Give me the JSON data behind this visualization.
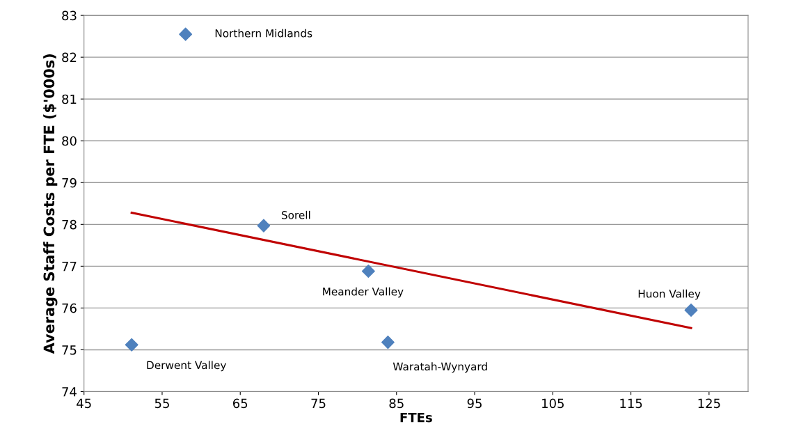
{
  "chart_data": {
    "type": "scatter",
    "xlabel": "FTEs",
    "ylabel": "Average Staff Costs per FTE ($'000s)",
    "xlim": [
      45,
      130
    ],
    "xticks": [
      45,
      55,
      65,
      75,
      85,
      95,
      105,
      115,
      125
    ],
    "ylim": [
      74,
      83
    ],
    "yticks": [
      74,
      75,
      76,
      77,
      78,
      79,
      80,
      81,
      82,
      83
    ],
    "grid": "y",
    "marker": "diamond",
    "series": [
      {
        "color": "#4f81bd",
        "x": [
          58,
          68,
          81.4,
          122.7,
          51.1,
          83.9
        ],
        "values": [
          82.55,
          77.97,
          76.88,
          75.95,
          75.12,
          75.18
        ]
      },
      {
        "type": "line",
        "color": "#c00000",
        "x": [
          51.1,
          122.7
        ],
        "values": [
          78.28,
          75.52
        ],
        "marker": "none"
      }
    ],
    "annotations": [
      {
        "text": "Northern Midlands",
        "x": 58,
        "y": 82.55
      },
      {
        "text": "Sorell",
        "x": 68,
        "y": 77.97
      },
      {
        "text": "Meander Valley",
        "x": 81.4,
        "y": 76.88
      },
      {
        "text": "Huon Valley",
        "x": 122.7,
        "y": 75.95
      },
      {
        "text": "Derwent Valley",
        "x": 51.1,
        "y": 75.12
      },
      {
        "text": "Waratah-Wynyard",
        "x": 83.9,
        "y": 75.18
      }
    ]
  }
}
